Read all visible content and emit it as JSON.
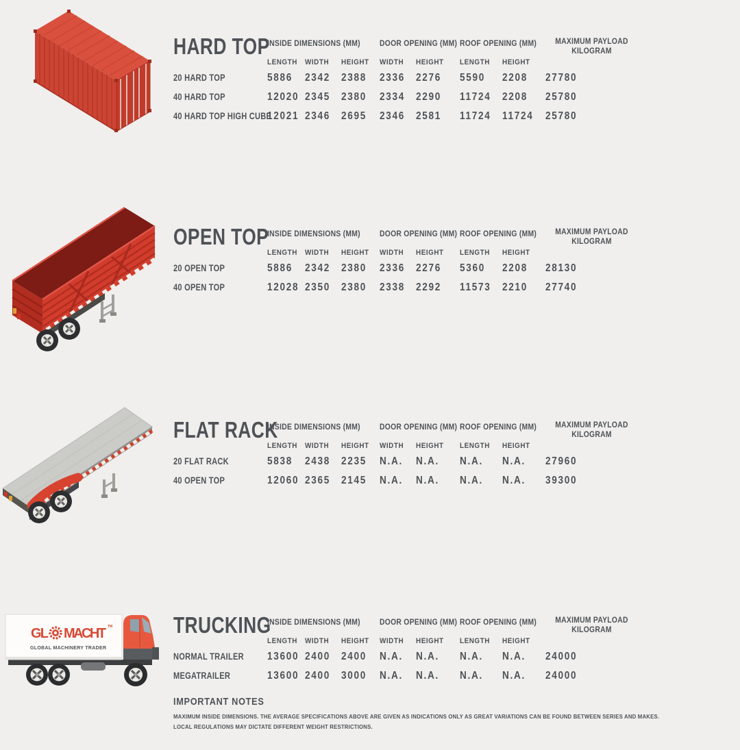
{
  "page": {
    "background": "#f0efed",
    "text_color": "#4e5257",
    "accent_red": "#d1402f"
  },
  "table_headers": {
    "group1": "INSIDE DIMENSIONS (MM)",
    "group2": "DOOR OPENING (MM)",
    "group3": "ROOF OPENING (MM)",
    "group4_line1": "MAXIMUM PAYLOAD",
    "group4_line2": "KILOGRAM",
    "sub": [
      "LENGTH",
      "WIDTH",
      "HEIGHT",
      "WIDTH",
      "HEIGHT",
      "LENGTH",
      "HEIGHT"
    ]
  },
  "sections": [
    {
      "title": "HARD TOP",
      "illustration": "red-shipping-container",
      "rows": [
        {
          "label": "20 HARD TOP",
          "values": [
            "5886",
            "2342",
            "2388",
            "2336",
            "2276",
            "5590",
            "2208",
            "27780"
          ]
        },
        {
          "label": "40 HARD TOP",
          "values": [
            "12020",
            "2345",
            "2380",
            "2334",
            "2290",
            "11724",
            "2208",
            "25780"
          ]
        },
        {
          "label": "40 HARD TOP HIGH CUBE",
          "values": [
            "12021",
            "2346",
            "2695",
            "2346",
            "2581",
            "11724",
            "11724",
            "25780"
          ]
        }
      ]
    },
    {
      "title": "OPEN TOP",
      "illustration": "red-open-top-trailer",
      "rows": [
        {
          "label": "20 OPEN TOP",
          "values": [
            "5886",
            "2342",
            "2380",
            "2336",
            "2276",
            "5360",
            "2208",
            "28130"
          ]
        },
        {
          "label": "40 OPEN TOP",
          "values": [
            "12028",
            "2350",
            "2380",
            "2338",
            "2292",
            "11573",
            "2210",
            "27740"
          ]
        }
      ]
    },
    {
      "title": "FLAT RACK",
      "illustration": "grey-flat-rack-trailer",
      "rows": [
        {
          "label": "20 FLAT RACK",
          "values": [
            "5838",
            "2438",
            "2235",
            "N.A.",
            "N.A.",
            "N.A.",
            "N.A.",
            "27960"
          ]
        },
        {
          "label": "40 OPEN TOP",
          "values": [
            "12060",
            "2365",
            "2145",
            "N.A.",
            "N.A.",
            "N.A.",
            "N.A.",
            "39300"
          ]
        }
      ]
    },
    {
      "title": "TRUCKING",
      "illustration": "glomacht-box-truck",
      "rows": [
        {
          "label": "NORMAL TRAILER",
          "values": [
            "13600",
            "2400",
            "2400",
            "N.A.",
            "N.A.",
            "N.A.",
            "N.A.",
            "24000"
          ]
        },
        {
          "label": "MEGATRAILER",
          "values": [
            "13600",
            "2400",
            "3000",
            "N.A.",
            "N.A.",
            "N.A.",
            "N.A.",
            "24000"
          ]
        }
      ]
    }
  ],
  "notes": {
    "title": "IMPORTANT NOTES",
    "line1": "MAXIMUM INSIDE DIMENSIONS. THE AVERAGE SPECIFICATIONS ABOVE ARE GIVEN AS INDICATIONS ONLY AS GREAT VARIATIONS CAN BE FOUND BETWEEN SERIES AND MAKES.",
    "line2": "LOCAL REGULATIONS MAY DICTATE DIFFERENT WEIGHT RESTRICTIONS."
  },
  "logo": {
    "part1": "GL",
    "part2": "MACHT",
    "trademark": "TM",
    "tagline": "GLOBAL MACHINERY TRADER",
    "gear_icon": "gear-icon",
    "color": "#d64a36"
  }
}
